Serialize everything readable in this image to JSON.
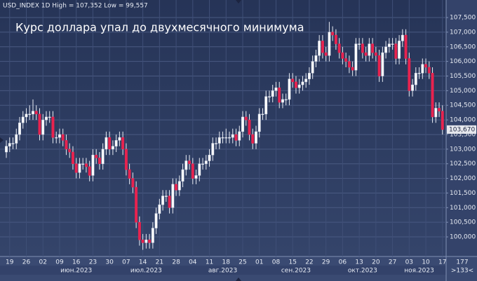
{
  "chart_data": {
    "type": "candlestick",
    "header": "USD_INDEX 1D High = 107,352 Low = 99,557",
    "title": "Курс доллара упал до двухмесячного минимума",
    "open": [
      102.9,
      103.1,
      103.2,
      103.2,
      103.5,
      103.9,
      104.1,
      104.2,
      104.2,
      104.3,
      104.2,
      103.5,
      104.0,
      104.1,
      104.1,
      103.4,
      103.4,
      103.5,
      103.3,
      103.0,
      102.9,
      102.5,
      102.2,
      102.5,
      102.5,
      102.4,
      102.1,
      102.8,
      102.7,
      102.5,
      103.0,
      103.4,
      103.0,
      103.1,
      103.3,
      103.4,
      103.0,
      102.3,
      102.0,
      101.7,
      100.5,
      99.9,
      99.8,
      99.9,
      99.8,
      100.3,
      100.8,
      101.1,
      101.4,
      101.4,
      101.0,
      101.8,
      101.6,
      101.9,
      102.3,
      102.6,
      102.5,
      102.0,
      102.1,
      102.5,
      102.5,
      102.6,
      102.8,
      103.2,
      103.2,
      103.4,
      103.4,
      103.4,
      103.4,
      103.5,
      103.3,
      103.6,
      104.1,
      104.0,
      103.5,
      103.2,
      103.6,
      104.2,
      104.2,
      104.8,
      104.8,
      105.0,
      105.1,
      104.6,
      104.7,
      104.7,
      105.4,
      105.3,
      105.1,
      105.2,
      105.3,
      105.4,
      105.6,
      106.0,
      106.2,
      106.7,
      106.3,
      106.2,
      107.0,
      106.9,
      106.6,
      106.3,
      106.1,
      106.0,
      105.8,
      105.7,
      106.6,
      106.6,
      106.3,
      106.2,
      106.6,
      106.3,
      106.2,
      105.5,
      106.3,
      106.5,
      106.6,
      106.6,
      106.1,
      106.7,
      106.9,
      106.1,
      105.0,
      105.2,
      105.6,
      105.6,
      105.9,
      105.8,
      105.6,
      104.1,
      104.4,
      104.3
    ],
    "high": [
      103.3,
      103.4,
      103.4,
      103.7,
      104.1,
      104.3,
      104.4,
      104.5,
      104.7,
      104.5,
      104.4,
      104.2,
      104.3,
      104.3,
      104.3,
      103.6,
      103.7,
      103.7,
      103.5,
      103.2,
      103.1,
      102.7,
      102.7,
      102.7,
      102.7,
      102.6,
      103.0,
      103.0,
      102.9,
      103.2,
      103.6,
      103.6,
      103.3,
      103.5,
      103.6,
      103.6,
      103.2,
      102.5,
      102.2,
      101.9,
      100.7,
      100.1,
      100.1,
      100.1,
      100.5,
      101.0,
      101.3,
      101.6,
      101.6,
      101.6,
      102.0,
      102.0,
      102.1,
      102.5,
      102.8,
      102.8,
      102.7,
      102.3,
      102.7,
      102.7,
      102.8,
      103.0,
      103.4,
      103.4,
      103.6,
      103.6,
      103.7,
      103.6,
      103.7,
      103.7,
      103.8,
      104.3,
      104.3,
      104.2,
      103.7,
      103.8,
      104.4,
      104.4,
      105.0,
      105.0,
      105.2,
      105.3,
      105.3,
      104.9,
      104.9,
      105.6,
      105.6,
      105.5,
      105.4,
      105.5,
      105.6,
      105.8,
      106.2,
      106.4,
      106.9,
      106.9,
      106.5,
      107.352,
      107.2,
      107.1,
      106.8,
      106.5,
      106.3,
      106.2,
      106.0,
      106.8,
      106.8,
      106.8,
      106.5,
      106.8,
      106.8,
      106.5,
      106.4,
      106.5,
      106.7,
      106.8,
      106.8,
      106.8,
      106.9,
      107.1,
      107.1,
      106.3,
      105.4,
      105.8,
      105.8,
      106.1,
      106.1,
      106.0,
      105.8,
      104.6,
      104.6,
      104.5
    ],
    "low": [
      102.7,
      102.9,
      103.0,
      103.0,
      103.3,
      103.7,
      103.9,
      104.0,
      104.0,
      104.0,
      103.3,
      103.3,
      103.8,
      103.9,
      103.2,
      103.2,
      103.2,
      103.1,
      102.8,
      102.7,
      102.3,
      102.0,
      102.0,
      102.3,
      102.2,
      101.9,
      101.9,
      102.5,
      102.3,
      102.3,
      102.8,
      102.8,
      102.8,
      102.9,
      103.1,
      102.8,
      102.1,
      101.8,
      101.5,
      100.3,
      99.7,
      99.557,
      99.6,
      99.6,
      99.6,
      100.1,
      100.6,
      100.9,
      101.2,
      100.8,
      100.8,
      101.4,
      101.4,
      101.7,
      102.1,
      102.3,
      101.8,
      101.8,
      101.9,
      102.3,
      102.3,
      102.4,
      102.6,
      103.0,
      103.0,
      103.2,
      103.2,
      103.2,
      103.2,
      103.1,
      103.1,
      103.4,
      103.8,
      103.3,
      103.0,
      103.0,
      103.4,
      104.0,
      104.0,
      104.6,
      104.6,
      104.8,
      104.4,
      104.4,
      104.5,
      104.5,
      105.1,
      104.9,
      104.9,
      105.0,
      105.1,
      105.2,
      105.4,
      105.8,
      106.0,
      106.1,
      106.0,
      106.0,
      106.7,
      106.4,
      106.1,
      105.9,
      105.8,
      105.6,
      105.5,
      105.5,
      106.4,
      106.1,
      106.0,
      106.0,
      106.1,
      106.0,
      105.3,
      105.3,
      106.1,
      106.3,
      106.4,
      105.9,
      105.9,
      106.5,
      105.9,
      104.8,
      104.8,
      105.0,
      105.4,
      105.4,
      105.6,
      105.4,
      103.9,
      103.9,
      104.1,
      103.5
    ],
    "close": [
      103.1,
      103.2,
      103.2,
      103.5,
      103.9,
      104.1,
      104.2,
      104.2,
      104.3,
      104.2,
      103.5,
      104.0,
      104.1,
      104.1,
      103.4,
      103.4,
      103.5,
      103.3,
      103.0,
      102.9,
      102.5,
      102.2,
      102.5,
      102.5,
      102.4,
      102.1,
      102.8,
      102.7,
      102.5,
      103.0,
      103.4,
      103.0,
      103.1,
      103.3,
      103.4,
      103.0,
      102.3,
      102.0,
      101.7,
      100.5,
      99.9,
      99.8,
      99.9,
      99.8,
      100.3,
      100.8,
      101.1,
      101.4,
      101.4,
      101.0,
      101.8,
      101.6,
      101.9,
      102.3,
      102.6,
      102.5,
      102.0,
      102.1,
      102.5,
      102.5,
      102.6,
      102.8,
      103.2,
      103.2,
      103.4,
      103.4,
      103.4,
      103.4,
      103.5,
      103.3,
      103.6,
      104.1,
      104.0,
      103.5,
      103.2,
      103.6,
      104.2,
      104.2,
      104.8,
      104.8,
      105.0,
      105.1,
      104.6,
      104.7,
      104.7,
      105.4,
      105.3,
      105.1,
      105.2,
      105.3,
      105.4,
      105.6,
      106.0,
      106.2,
      106.7,
      106.3,
      106.2,
      107.0,
      106.9,
      106.6,
      106.3,
      106.1,
      106.0,
      105.8,
      105.7,
      106.6,
      106.6,
      106.3,
      106.2,
      106.6,
      106.3,
      106.2,
      105.5,
      106.3,
      106.5,
      106.6,
      106.6,
      106.1,
      106.7,
      106.9,
      106.1,
      105.0,
      105.2,
      105.6,
      105.6,
      105.9,
      105.8,
      105.6,
      104.1,
      104.4,
      104.3,
      103.67
    ],
    "up_color": "#ffffff",
    "down_color": "#e8234f",
    "last_label": "103,670",
    "ylim": [
      99.33,
      108.1
    ],
    "yticks": [
      {
        "value": 100,
        "label": "100,000"
      },
      {
        "value": 100.5,
        "label": "100,500"
      },
      {
        "value": 101,
        "label": "101,000"
      },
      {
        "value": 101.5,
        "label": "101,500"
      },
      {
        "value": 102,
        "label": "102,000"
      },
      {
        "value": 102.5,
        "label": "102,500"
      },
      {
        "value": 103,
        "label": "103,000"
      },
      {
        "value": 103.5,
        "label": "103,500"
      },
      {
        "value": 104,
        "label": "104,000"
      },
      {
        "value": 104.5,
        "label": "104,500"
      },
      {
        "value": 105,
        "label": "105,000"
      },
      {
        "value": 105.5,
        "label": "105,500"
      },
      {
        "value": 106,
        "label": "106,000"
      },
      {
        "value": 106.5,
        "label": "106,500"
      },
      {
        "value": 107,
        "label": "107,000"
      },
      {
        "value": 107.5,
        "label": "107,500"
      }
    ],
    "xlim": [
      -1.9,
      132.1
    ],
    "xticks": [
      {
        "value": 1,
        "label": "19"
      },
      {
        "value": 6,
        "label": "26"
      },
      {
        "value": 11,
        "label": "02"
      },
      {
        "value": 16,
        "label": "09"
      },
      {
        "value": 21,
        "label": "16"
      },
      {
        "value": 26,
        "label": "23"
      },
      {
        "value": 31,
        "label": "30"
      },
      {
        "value": 36,
        "label": "07"
      },
      {
        "value": 41,
        "label": "14"
      },
      {
        "value": 46,
        "label": "21"
      },
      {
        "value": 51,
        "label": "28"
      },
      {
        "value": 56,
        "label": "04"
      },
      {
        "value": 61,
        "label": "11"
      },
      {
        "value": 66,
        "label": "18"
      },
      {
        "value": 71,
        "label": "25"
      },
      {
        "value": 76,
        "label": "01"
      },
      {
        "value": 81,
        "label": "08"
      },
      {
        "value": 86,
        "label": "15"
      },
      {
        "value": 91,
        "label": "22"
      },
      {
        "value": 96,
        "label": "29"
      },
      {
        "value": 101,
        "label": "06"
      },
      {
        "value": 106,
        "label": "13"
      },
      {
        "value": 111,
        "label": "20"
      },
      {
        "value": 116,
        "label": "27"
      },
      {
        "value": 121,
        "label": "03"
      },
      {
        "value": 126,
        "label": "10"
      },
      {
        "value": 131,
        "label": "17"
      }
    ],
    "month_ticks": [
      {
        "value": 21,
        "label": "июн.2023"
      },
      {
        "value": 42,
        "label": "июл.2023"
      },
      {
        "value": 65,
        "label": "авг.2023"
      },
      {
        "value": 87,
        "label": "сен.2023"
      },
      {
        "value": 107,
        "label": "окт.2023"
      },
      {
        "value": 124,
        "label": "ноя.2023"
      }
    ],
    "corner_labels": [
      "177",
      ">133<"
    ],
    "grid": true
  }
}
